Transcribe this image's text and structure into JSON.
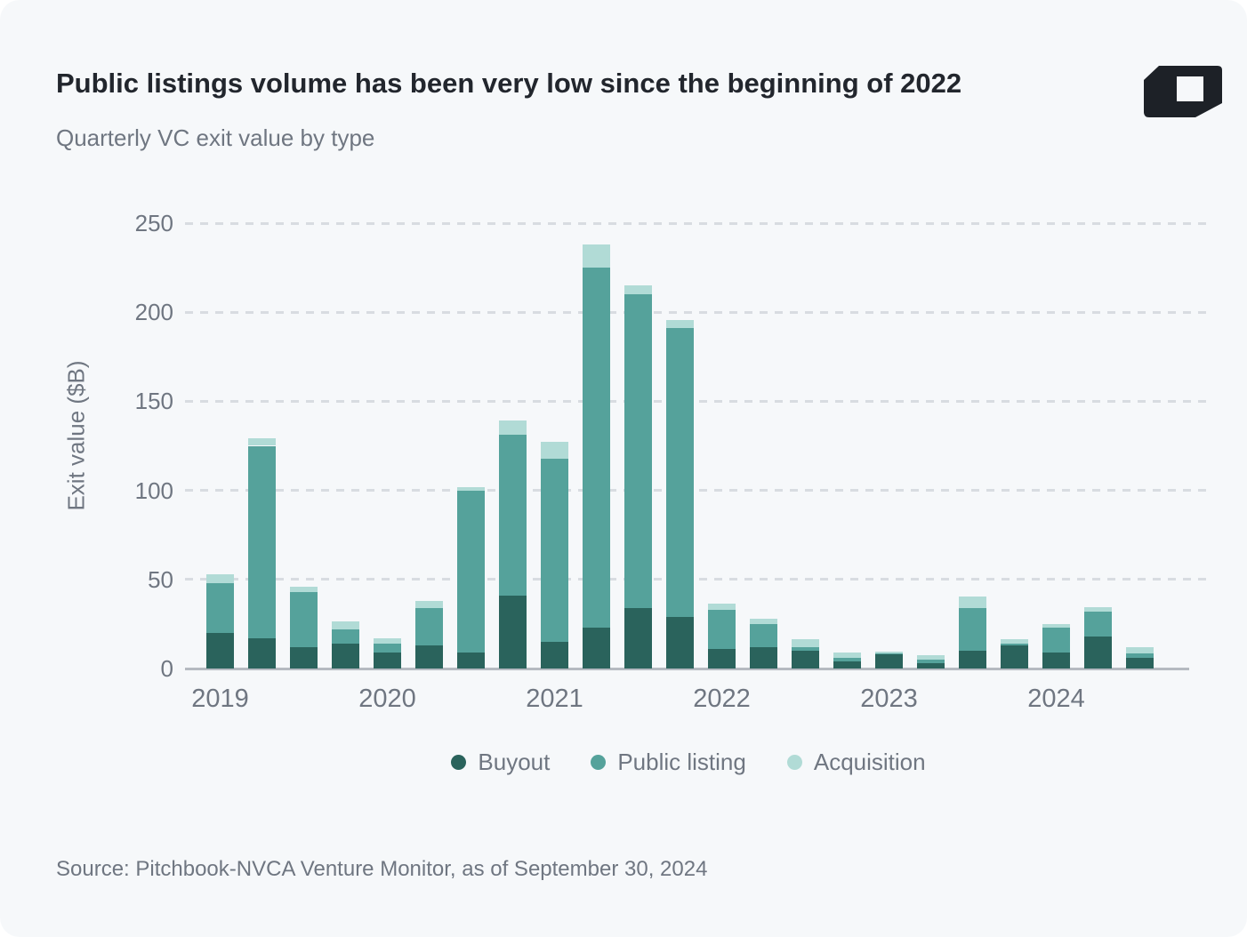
{
  "header": {
    "title": "Public listings volume has been very low since the beginning of 2022",
    "subtitle": "Quarterly VC exit value by type"
  },
  "chart_data": {
    "type": "bar",
    "stacked": true,
    "title": "Public listings volume has been very low since the beginning of 2022",
    "subtitle": "Quarterly VC exit value by type",
    "ylabel": "Exit value ($B)",
    "ylim": [
      0,
      250
    ],
    "yticks": [
      0,
      50,
      100,
      150,
      200,
      250
    ],
    "grid": "dashed horizontal",
    "legend_position": "bottom",
    "x_year_labels": [
      "2019",
      "2020",
      "2021",
      "2022",
      "2023",
      "2024"
    ],
    "categories": [
      "Q1 2019",
      "Q2 2019",
      "Q3 2019",
      "Q4 2019",
      "Q1 2020",
      "Q2 2020",
      "Q3 2020",
      "Q4 2020",
      "Q1 2021",
      "Q2 2021",
      "Q3 2021",
      "Q4 2021",
      "Q1 2022",
      "Q2 2022",
      "Q3 2022",
      "Q4 2022",
      "Q1 2023",
      "Q2 2023",
      "Q3 2023",
      "Q4 2023",
      "Q1 2024",
      "Q2 2024",
      "Q3 2024"
    ],
    "series": [
      {
        "name": "Buyout",
        "color": "#2a635c",
        "values": [
          20,
          17,
          12,
          14,
          9,
          13,
          9,
          41,
          15,
          23,
          34,
          29,
          11,
          12,
          10,
          4,
          8,
          3,
          10,
          13,
          9,
          18,
          6
        ]
      },
      {
        "name": "Public listing",
        "color": "#55a29b",
        "values": [
          28,
          108,
          31,
          8,
          5,
          21,
          91,
          90,
          103,
          202,
          176,
          162,
          22,
          13,
          2,
          2,
          0.5,
          2,
          24,
          1,
          14,
          14,
          2.5
        ]
      },
      {
        "name": "Acquisition",
        "color": "#b1dbd6",
        "values": [
          5,
          4,
          3,
          4.5,
          3,
          4,
          2,
          8,
          9,
          13,
          5,
          4.5,
          3.5,
          3,
          4.5,
          3,
          1,
          2.5,
          6.5,
          2.5,
          2,
          2.5,
          3.5
        ]
      }
    ]
  },
  "footer": {
    "source": "Source: Pitchbook-NVCA Venture Monitor, as of September 30, 2024"
  }
}
